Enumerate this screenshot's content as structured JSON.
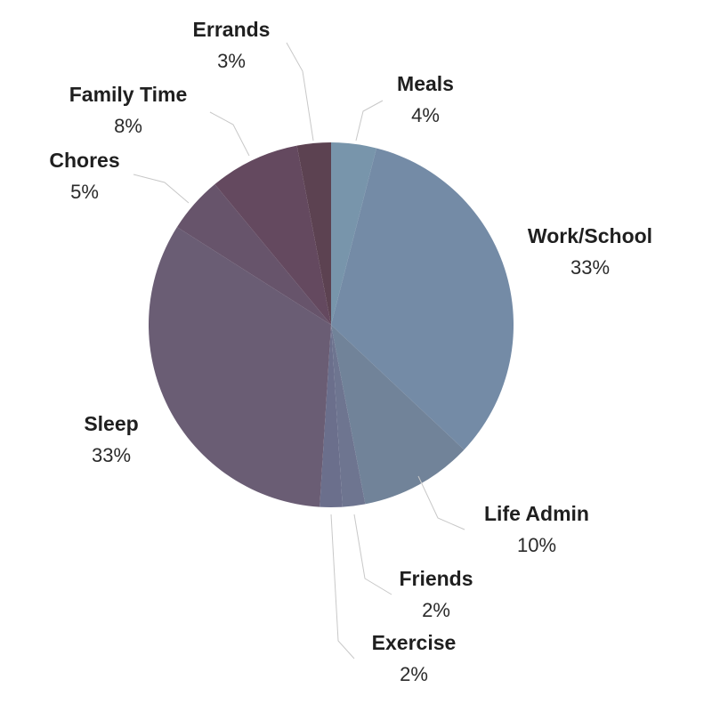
{
  "chart_data": {
    "type": "pie",
    "start": "top",
    "direction": "clockwise",
    "slices": [
      {
        "label": "Meals",
        "value": 4,
        "display": "4%",
        "color": "#7895ab"
      },
      {
        "label": "Work/School",
        "value": 33,
        "display": "33%",
        "color": "#748ba6"
      },
      {
        "label": "Life Admin",
        "value": 10,
        "display": "10%",
        "color": "#718399"
      },
      {
        "label": "Friends",
        "value": 2,
        "display": "2%",
        "color": "#6e7590"
      },
      {
        "label": "Exercise",
        "value": 2,
        "display": "2%",
        "color": "#6b6f8c"
      },
      {
        "label": "Sleep",
        "value": 33,
        "display": "33%",
        "color": "#6a5d74"
      },
      {
        "label": "Chores",
        "value": 5,
        "display": "5%",
        "color": "#67546b"
      },
      {
        "label": "Family Time",
        "value": 8,
        "display": "8%",
        "color": "#64495f"
      },
      {
        "label": "Errands",
        "value": 3,
        "display": "3%",
        "color": "#5c4251"
      }
    ]
  }
}
